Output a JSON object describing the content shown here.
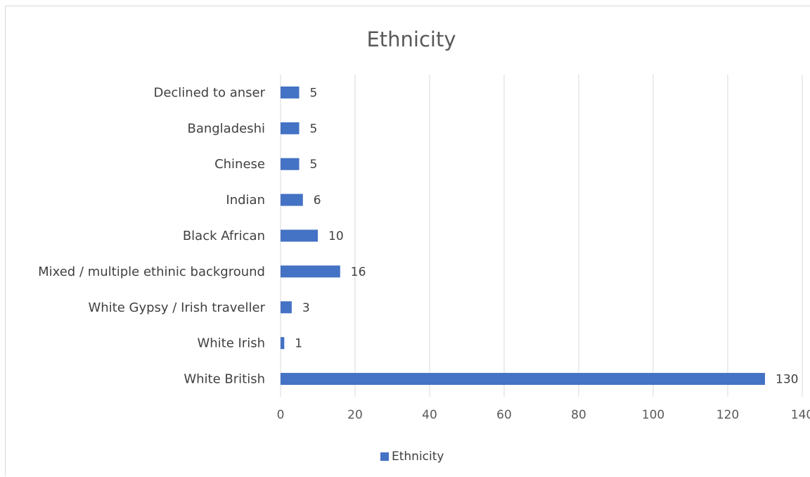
{
  "chart_data": {
    "type": "bar",
    "orientation": "horizontal",
    "title": "Ethnicity",
    "categories": [
      "Declined to anser",
      "Bangladeshi",
      "Chinese",
      "Indian",
      "Black African",
      "Mixed / multiple ethinic background",
      "White Gypsy / Irish traveller",
      "White Irish",
      "White British"
    ],
    "series": [
      {
        "name": "Ethnicity",
        "values": [
          5,
          5,
          5,
          6,
          10,
          16,
          3,
          1,
          130
        ],
        "color": "#4472c4"
      }
    ],
    "xlim": [
      0,
      140
    ],
    "x_ticks": [
      0,
      20,
      40,
      60,
      80,
      100,
      120,
      140
    ],
    "xlabel": "",
    "ylabel": "",
    "grid": "vertical",
    "data_labels": true,
    "legend_position": "bottom"
  }
}
